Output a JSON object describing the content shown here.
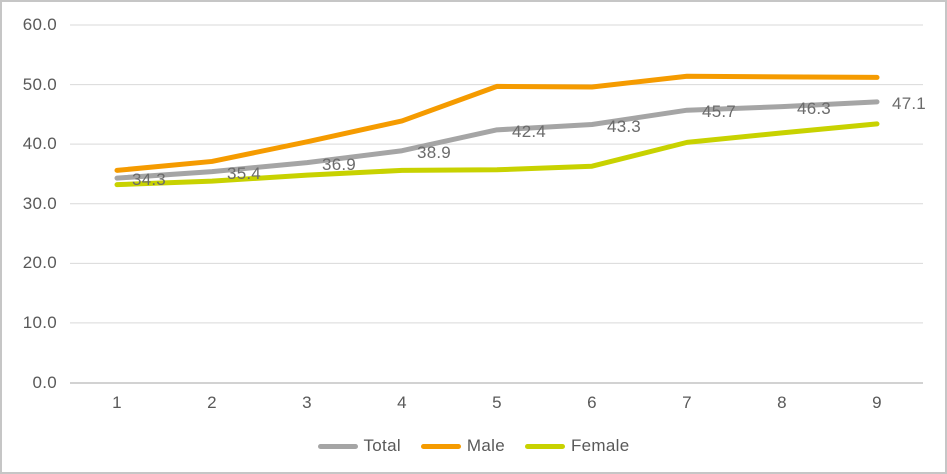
{
  "frame": {
    "border_color": "#c6c6c6",
    "background": "#ffffff"
  },
  "style": {
    "gridline_color": "#d9d9d9",
    "axis_line_color": "#c3c3c3",
    "tick_label_color": "#595959",
    "data_label_color": "#6b6b6b",
    "legend_label_color": "#595959",
    "line_width": 5
  },
  "chart_data": {
    "type": "line",
    "title": "",
    "xlabel": "",
    "ylabel": "",
    "categories": [
      "1",
      "2",
      "3",
      "4",
      "5",
      "6",
      "7",
      "8",
      "9"
    ],
    "ylim": [
      0,
      60
    ],
    "ytick_step": 10,
    "ytick_labels": [
      "0.0",
      "10.0",
      "20.0",
      "30.0",
      "40.0",
      "50.0",
      "60.0"
    ],
    "grid": true,
    "legend_position": "bottom",
    "series": [
      {
        "name": "Total",
        "color": "#a5a5a5",
        "values": [
          34.3,
          35.4,
          36.9,
          38.9,
          42.4,
          43.3,
          45.7,
          46.3,
          47.1
        ],
        "data_labels": [
          "34.3",
          "35.4",
          "36.9",
          "38.9",
          "42.4",
          "43.3",
          "45.7",
          "46.3",
          "47.1"
        ]
      },
      {
        "name": "Male",
        "color": "#f59b00",
        "values": [
          35.6,
          37.1,
          40.4,
          43.9,
          49.7,
          49.6,
          51.4,
          51.3,
          51.2
        ],
        "data_labels": []
      },
      {
        "name": "Female",
        "color": "#c8d200",
        "values": [
          33.2,
          33.8,
          34.8,
          35.6,
          35.7,
          36.3,
          40.3,
          41.9,
          43.4
        ],
        "data_labels": []
      }
    ]
  }
}
